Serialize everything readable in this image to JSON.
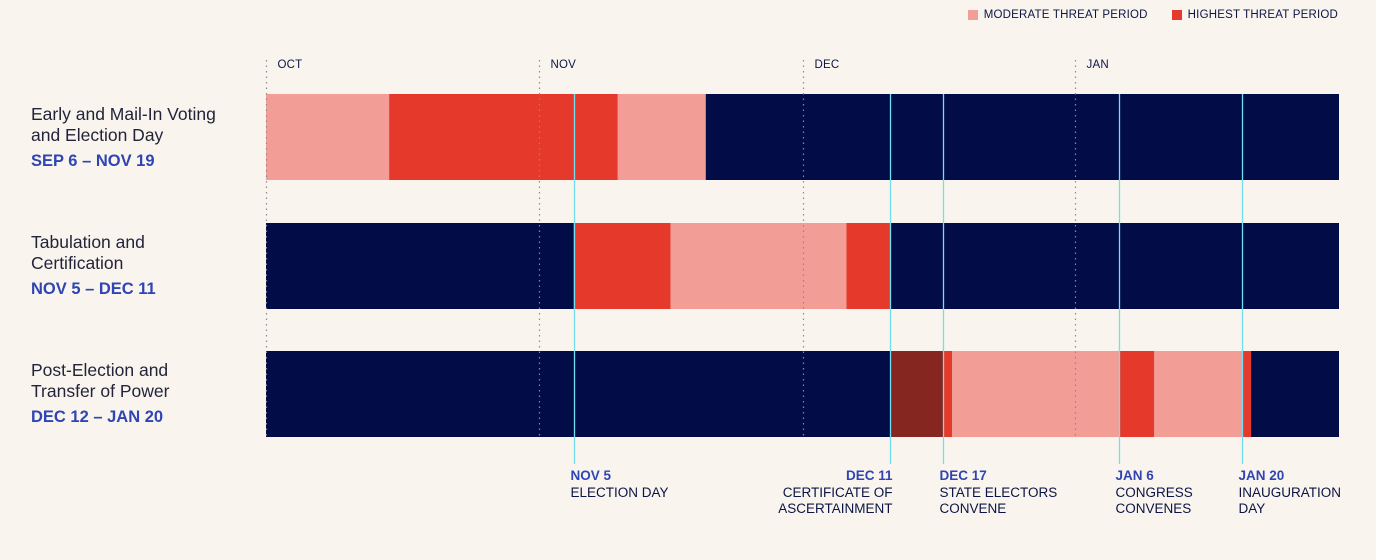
{
  "legend": {
    "moderate_label": "MODERATE THREAT PERIOD",
    "highest_label": "HIGHEST THREAT PERIOD"
  },
  "rows": [
    {
      "title_line1": "Early and Mail-In Voting",
      "title_line2": "and Election Day",
      "range": "SEP 6 – NOV 19"
    },
    {
      "title_line1": "Tabulation and",
      "title_line2": "Certification",
      "range": "NOV 5 – DEC 11"
    },
    {
      "title_line1": "Post-Election and",
      "title_line2": "Transfer of Power",
      "range": "DEC 12 – JAN 20"
    }
  ],
  "colors": {
    "background": "#f9f5ee",
    "baseline": "#020d47",
    "moderate": "#f29e96",
    "highest": "#e5392b",
    "darkest": "#852620",
    "marker_line": "#72dff0",
    "date_blue": "#2f45b4",
    "navy_text": "#0b1444"
  },
  "chart_data": {
    "type": "timeline",
    "x_domain": [
      "2024-10-01",
      "2025-01-31"
    ],
    "months": [
      {
        "label": "OCT",
        "date": "2024-10-01"
      },
      {
        "label": "NOV",
        "date": "2024-11-01"
      },
      {
        "label": "DEC",
        "date": "2024-12-01"
      },
      {
        "label": "JAN",
        "date": "2025-01-01"
      }
    ],
    "rows": [
      {
        "segments": [
          {
            "start": "2024-10-01",
            "end": "2024-10-15",
            "level": "moderate"
          },
          {
            "start": "2024-10-15",
            "end": "2024-11-10",
            "level": "highest"
          },
          {
            "start": "2024-11-10",
            "end": "2024-11-20",
            "level": "moderate"
          },
          {
            "start": "2024-11-20",
            "end": "2025-01-31",
            "level": "baseline"
          }
        ]
      },
      {
        "segments": [
          {
            "start": "2024-10-01",
            "end": "2024-11-05",
            "level": "baseline"
          },
          {
            "start": "2024-11-05",
            "end": "2024-11-16",
            "level": "highest"
          },
          {
            "start": "2024-11-16",
            "end": "2024-12-06",
            "level": "moderate"
          },
          {
            "start": "2024-12-06",
            "end": "2024-12-11",
            "level": "highest"
          },
          {
            "start": "2024-12-11",
            "end": "2025-01-31",
            "level": "baseline"
          }
        ]
      },
      {
        "segments": [
          {
            "start": "2024-10-01",
            "end": "2024-12-11",
            "level": "baseline"
          },
          {
            "start": "2024-12-11",
            "end": "2024-12-17",
            "level": "darkest"
          },
          {
            "start": "2024-12-17",
            "end": "2024-12-18",
            "level": "highest"
          },
          {
            "start": "2024-12-18",
            "end": "2025-01-06",
            "level": "moderate"
          },
          {
            "start": "2025-01-06",
            "end": "2025-01-10",
            "level": "highest"
          },
          {
            "start": "2025-01-10",
            "end": "2025-01-20",
            "level": "moderate"
          },
          {
            "start": "2025-01-20",
            "end": "2025-01-21",
            "level": "highest"
          },
          {
            "start": "2025-01-21",
            "end": "2025-01-31",
            "level": "baseline"
          }
        ]
      }
    ],
    "markers": [
      {
        "date": "2024-11-05",
        "label": "NOV 5",
        "desc": [
          "ELECTION DAY"
        ],
        "align": "start"
      },
      {
        "date": "2024-12-11",
        "label": "DEC 11",
        "desc": [
          "CERTIFICATE OF",
          "ASCERTAINMENT"
        ],
        "align": "end"
      },
      {
        "date": "2024-12-17",
        "label": "DEC 17",
        "desc": [
          "STATE ELECTORS",
          "CONVENE"
        ],
        "align": "start"
      },
      {
        "date": "2025-01-06",
        "label": "JAN 6",
        "desc": [
          "CONGRESS",
          "CONVENES"
        ],
        "align": "start"
      },
      {
        "date": "2025-01-20",
        "label": "JAN 20",
        "desc": [
          "INAUGURATION",
          "DAY"
        ],
        "align": "start"
      }
    ]
  }
}
